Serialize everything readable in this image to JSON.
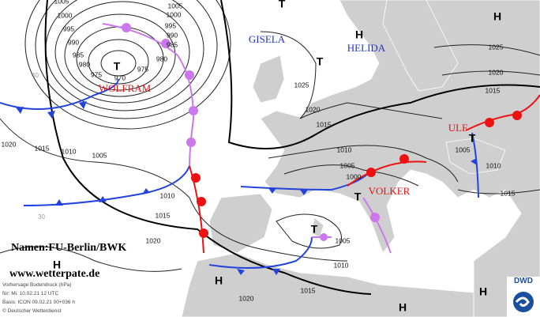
{
  "pressure_centers": [
    "T",
    "T",
    "H",
    "T",
    "H",
    "T",
    "T",
    "H",
    "H",
    "H",
    "H",
    "T"
  ],
  "system_names": [
    "GISELA",
    "HELIDA",
    "WOLFRAM",
    "VOLKER",
    "ULF"
  ],
  "isobar_labels": [
    "1005",
    "1000",
    "995",
    "990",
    "985",
    "980",
    "975",
    "970",
    "975",
    "980",
    "985",
    "990",
    "995",
    "1000",
    "1005",
    "1020",
    "1015",
    "1010",
    "1005",
    "1010",
    "1015",
    "1020",
    "1025",
    "1020",
    "1015",
    "1010",
    "1005",
    "1000",
    "1005",
    "1010",
    "1015",
    "1020",
    "1025",
    "1020",
    "1015",
    "1005",
    "1010",
    "1015"
  ],
  "latitude_labels": [
    "40",
    "30"
  ],
  "credits": {
    "names": "Namen:FU-Berlin/BWK",
    "website": "www.wetterpate.de"
  },
  "info": {
    "title": "Vorhersage Bodendruck (hPa)",
    "valid": "für:  Mi. 10.02.21  12 UTC",
    "base": "Basis: ICON  09.02.21 00+036 h",
    "copyright": "© Deutscher Wetterdienst"
  },
  "logo": "DWD"
}
